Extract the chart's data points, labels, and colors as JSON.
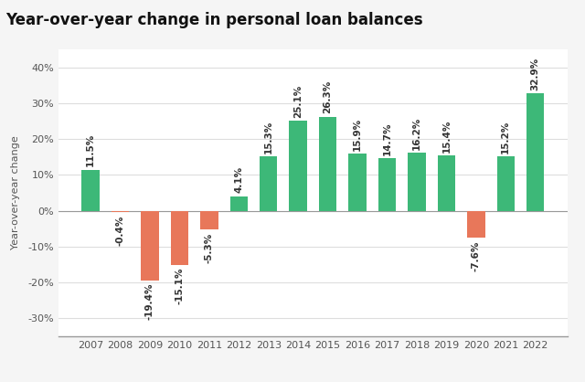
{
  "title": "Year-over-year change in personal loan balances",
  "ylabel": "Year-over-year change",
  "years": [
    2007,
    2008,
    2009,
    2010,
    2011,
    2012,
    2013,
    2014,
    2015,
    2016,
    2017,
    2018,
    2019,
    2020,
    2021,
    2022
  ],
  "values": [
    11.5,
    -0.4,
    -19.4,
    -15.1,
    -5.3,
    4.1,
    15.3,
    25.1,
    26.3,
    15.9,
    14.7,
    16.2,
    15.4,
    -7.6,
    15.2,
    32.9
  ],
  "color_positive": "#3db878",
  "color_negative": "#e8775a",
  "background_color": "#f5f5f5",
  "plot_bg_color": "#ffffff",
  "ylim": [
    -35,
    45
  ],
  "yticks": [
    -30,
    -20,
    -10,
    0,
    10,
    20,
    30,
    40
  ],
  "title_fontsize": 12,
  "label_fontsize": 7.5,
  "tick_fontsize": 8,
  "ylabel_fontsize": 8,
  "bar_width": 0.6
}
